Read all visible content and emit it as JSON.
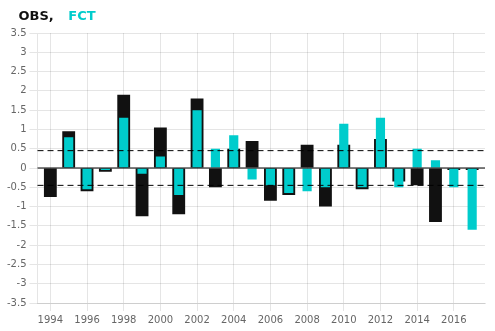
{
  "chart_data": {
    "type": "bar",
    "x": [
      1994,
      1995,
      1996,
      1997,
      1998,
      1999,
      2000,
      2001,
      2002,
      2003,
      2004,
      2005,
      2006,
      2007,
      2008,
      2009,
      2010,
      2011,
      2012,
      2013,
      2014,
      2015,
      2016,
      2017
    ],
    "series": [
      {
        "name": "OBS,",
        "color": "#111111",
        "values": [
          -0.75,
          0.95,
          -0.6,
          -0.1,
          1.9,
          -1.25,
          1.05,
          -1.2,
          1.8,
          -0.5,
          0.5,
          0.7,
          -0.85,
          -0.7,
          0.6,
          -1.0,
          0.6,
          -0.55,
          0.75,
          -0.35,
          -0.45,
          -1.4,
          -0.05,
          -0.05
        ]
      },
      {
        "name": "FCT",
        "color": "#00cccc",
        "values": [
          0.0,
          0.8,
          -0.55,
          -0.05,
          1.3,
          -0.15,
          0.3,
          -0.7,
          1.5,
          0.5,
          0.85,
          -0.3,
          -0.45,
          -0.65,
          -0.6,
          -0.5,
          1.15,
          -0.5,
          1.3,
          -0.5,
          0.5,
          0.2,
          -0.5,
          -1.6
        ]
      }
    ],
    "xlim": [
      1993.3,
      2017.7
    ],
    "xticks": [
      1994,
      1996,
      1998,
      2000,
      2002,
      2004,
      2006,
      2008,
      2010,
      2012,
      2014,
      2016
    ],
    "ylim": [
      -3.5,
      3.5
    ],
    "yticks": [
      -3.5,
      -3,
      -2.5,
      -2,
      -1.5,
      -1,
      -0.5,
      0,
      0.5,
      1,
      1.5,
      2,
      2.5,
      3,
      3.5
    ],
    "hlines": [
      {
        "y": 0,
        "line_style": "solid"
      },
      {
        "y": 0.45,
        "line_style": "dashed"
      },
      {
        "y": -0.45,
        "line_style": "dashed"
      }
    ],
    "grid": true,
    "legend": "upper left"
  }
}
